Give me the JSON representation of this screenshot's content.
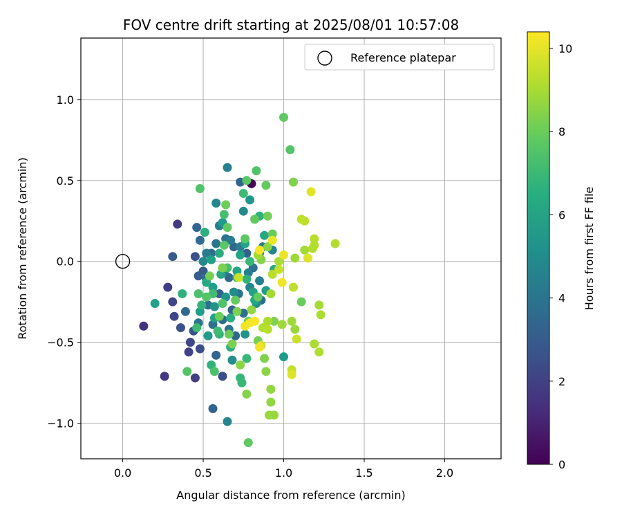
{
  "chart_data": {
    "type": "scatter",
    "title": "FOV centre drift starting at 2025/08/01 10:57:08",
    "xlabel": "Angular distance from reference (arcmin)",
    "ylabel": "Rotation from reference (arcmin)",
    "xlim": [
      -0.26,
      2.35
    ],
    "ylim": [
      -1.22,
      1.38
    ],
    "x_ticks": [
      0.0,
      0.5,
      1.0,
      1.5,
      2.0
    ],
    "x_tick_labels": [
      "0.0",
      "0.5",
      "1.0",
      "1.5",
      "2.0"
    ],
    "y_ticks": [
      -1.0,
      -0.5,
      0.0,
      0.5,
      1.0
    ],
    "y_tick_labels": [
      "−1.0",
      "−0.5",
      "0.0",
      "0.5",
      "1.0"
    ],
    "grid": true,
    "colormap": "viridis",
    "colorbar": {
      "label": "Hours from first FF file",
      "range": [
        0,
        10.4
      ],
      "ticks": [
        0,
        2,
        4,
        6,
        8,
        10
      ],
      "tick_labels": [
        "0",
        "2",
        "4",
        "6",
        "8",
        "10"
      ]
    },
    "legend": {
      "position": "upper right",
      "entries": [
        {
          "label": "Reference platepar",
          "marker": "open-circle"
        }
      ]
    },
    "reference_point": {
      "x": 0.0,
      "y": 0.0
    },
    "points": [
      {
        "x": 0.8,
        "y": 0.48,
        "h": 0.1
      },
      {
        "x": 0.13,
        "y": -0.4,
        "h": 1.5
      },
      {
        "x": 0.26,
        "y": -0.71,
        "h": 1.7
      },
      {
        "x": 0.28,
        "y": -0.16,
        "h": 1.9
      },
      {
        "x": 0.34,
        "y": 0.23,
        "h": 1.8
      },
      {
        "x": 0.45,
        "y": -0.72,
        "h": 2.0
      },
      {
        "x": 0.41,
        "y": -0.56,
        "h": 2.1
      },
      {
        "x": 0.31,
        "y": -0.25,
        "h": 2.2
      },
      {
        "x": 0.42,
        "y": -0.5,
        "h": 2.2
      },
      {
        "x": 0.48,
        "y": -0.54,
        "h": 2.4
      },
      {
        "x": 0.62,
        "y": -0.71,
        "h": 2.5
      },
      {
        "x": 0.36,
        "y": -0.41,
        "h": 2.6
      },
      {
        "x": 0.32,
        "y": -0.34,
        "h": 2.2
      },
      {
        "x": 0.44,
        "y": -0.43,
        "h": 2.7
      },
      {
        "x": 0.45,
        "y": 0.03,
        "h": 2.6
      },
      {
        "x": 0.31,
        "y": 0.03,
        "h": 3.0
      },
      {
        "x": 0.5,
        "y": -0.06,
        "h": 3.0
      },
      {
        "x": 0.47,
        "y": -0.09,
        "h": 3.1
      },
      {
        "x": 0.56,
        "y": -0.91,
        "h": 3.3
      },
      {
        "x": 0.73,
        "y": 0.49,
        "h": 3.4
      },
      {
        "x": 0.39,
        "y": -0.31,
        "h": 3.5
      },
      {
        "x": 0.52,
        "y": -0.11,
        "h": 3.6
      },
      {
        "x": 0.6,
        "y": -0.2,
        "h": 3.2
      },
      {
        "x": 0.46,
        "y": 0.21,
        "h": 3.4
      },
      {
        "x": 0.53,
        "y": -0.27,
        "h": 3.8
      },
      {
        "x": 0.64,
        "y": 0.14,
        "h": 3.9
      },
      {
        "x": 0.69,
        "y": 0.09,
        "h": 3.3
      },
      {
        "x": 0.55,
        "y": 0.05,
        "h": 3.7
      },
      {
        "x": 0.62,
        "y": -0.36,
        "h": 3.6
      },
      {
        "x": 0.7,
        "y": -0.46,
        "h": 3.5
      },
      {
        "x": 0.75,
        "y": -0.32,
        "h": 3.8
      },
      {
        "x": 0.66,
        "y": -0.42,
        "h": 3.9
      },
      {
        "x": 0.77,
        "y": 0.05,
        "h": 3.2
      },
      {
        "x": 0.58,
        "y": -0.58,
        "h": 3.4
      },
      {
        "x": 0.86,
        "y": -0.24,
        "h": 3.7
      },
      {
        "x": 0.66,
        "y": -0.1,
        "h": 3.5
      },
      {
        "x": 0.72,
        "y": -0.2,
        "h": 4.0
      },
      {
        "x": 0.58,
        "y": 0.11,
        "h": 4.0
      },
      {
        "x": 0.81,
        "y": -0.04,
        "h": 3.8
      },
      {
        "x": 0.48,
        "y": 0.13,
        "h": 3.6
      },
      {
        "x": 0.56,
        "y": -0.39,
        "h": 3.9
      },
      {
        "x": 0.68,
        "y": -0.3,
        "h": 3.4
      },
      {
        "x": 0.63,
        "y": -0.07,
        "h": 4.2
      },
      {
        "x": 0.47,
        "y": -0.38,
        "h": 4.1
      },
      {
        "x": 0.52,
        "y": 0.05,
        "h": 4.3
      },
      {
        "x": 0.87,
        "y": 0.09,
        "h": 4.2
      },
      {
        "x": 0.73,
        "y": 0.09,
        "h": 4.4
      },
      {
        "x": 0.65,
        "y": 0.58,
        "h": 4.6
      },
      {
        "x": 0.58,
        "y": 0.36,
        "h": 4.8
      },
      {
        "x": 0.85,
        "y": -0.12,
        "h": 4.6
      },
      {
        "x": 0.65,
        "y": -0.99,
        "h": 4.8
      },
      {
        "x": 0.79,
        "y": -0.16,
        "h": 4.7
      },
      {
        "x": 0.6,
        "y": 0.22,
        "h": 4.5
      },
      {
        "x": 0.75,
        "y": 0.31,
        "h": 5.0
      },
      {
        "x": 0.69,
        "y": -0.19,
        "h": 5.0
      },
      {
        "x": 0.68,
        "y": -0.61,
        "h": 5.1
      },
      {
        "x": 0.83,
        "y": -0.26,
        "h": 5.2
      },
      {
        "x": 0.57,
        "y": -0.28,
        "h": 5.3
      },
      {
        "x": 0.5,
        "y": 0.0,
        "h": 4.9
      },
      {
        "x": 0.93,
        "y": 0.07,
        "h": 4.7
      },
      {
        "x": 0.67,
        "y": 0.13,
        "h": 4.4
      },
      {
        "x": 0.78,
        "y": -0.07,
        "h": 4.5
      },
      {
        "x": 0.85,
        "y": 0.05,
        "h": 5.0
      },
      {
        "x": 1.0,
        "y": -0.59,
        "h": 5.7
      },
      {
        "x": 0.48,
        "y": -0.31,
        "h": 5.8
      },
      {
        "x": 0.2,
        "y": -0.26,
        "h": 5.9
      },
      {
        "x": 0.79,
        "y": 0.38,
        "h": 5.5
      },
      {
        "x": 0.62,
        "y": 0.24,
        "h": 5.6
      },
      {
        "x": 0.56,
        "y": -0.16,
        "h": 5.8
      },
      {
        "x": 0.76,
        "y": -0.45,
        "h": 5.4
      },
      {
        "x": 0.53,
        "y": -0.46,
        "h": 5.6
      },
      {
        "x": 0.81,
        "y": -0.19,
        "h": 6.0
      },
      {
        "x": 0.88,
        "y": 0.16,
        "h": 6.2
      },
      {
        "x": 0.64,
        "y": -0.22,
        "h": 5.4
      },
      {
        "x": 0.71,
        "y": -0.06,
        "h": 6.1
      },
      {
        "x": 0.55,
        "y": 0.01,
        "h": 5.9
      },
      {
        "x": 0.89,
        "y": -0.18,
        "h": 5.8
      },
      {
        "x": 0.76,
        "y": 0.11,
        "h": 6.1
      },
      {
        "x": 0.94,
        "y": -0.05,
        "h": 6.3
      },
      {
        "x": 0.82,
        "y": -0.24,
        "h": 6.2
      },
      {
        "x": 0.73,
        "y": 0.04,
        "h": 6.0
      },
      {
        "x": 0.61,
        "y": -0.08,
        "h": 6.3
      },
      {
        "x": 0.67,
        "y": -0.35,
        "h": 6.4
      },
      {
        "x": 0.52,
        "y": -0.13,
        "h": 6.2
      },
      {
        "x": 0.57,
        "y": -0.35,
        "h": 6.0
      },
      {
        "x": 0.51,
        "y": 0.18,
        "h": 6.5
      },
      {
        "x": 0.37,
        "y": -0.2,
        "h": 6.6
      },
      {
        "x": 0.6,
        "y": 0.05,
        "h": 6.4
      },
      {
        "x": 0.85,
        "y": 0.28,
        "h": 6.6
      },
      {
        "x": 0.55,
        "y": -0.64,
        "h": 6.7
      },
      {
        "x": 0.67,
        "y": -0.53,
        "h": 6.5
      },
      {
        "x": 0.77,
        "y": -0.11,
        "h": 6.7
      },
      {
        "x": 0.6,
        "y": -0.45,
        "h": 6.8
      },
      {
        "x": 0.49,
        "y": -0.27,
        "h": 6.8
      },
      {
        "x": 0.73,
        "y": -0.72,
        "h": 6.9
      },
      {
        "x": 0.74,
        "y": -0.75,
        "h": 7.0
      },
      {
        "x": 0.75,
        "y": 0.42,
        "h": 7.1
      },
      {
        "x": 0.71,
        "y": -0.1,
        "h": 6.9
      },
      {
        "x": 0.79,
        "y": 0.0,
        "h": 7.0
      },
      {
        "x": 0.77,
        "y": -0.6,
        "h": 7.0
      },
      {
        "x": 0.46,
        "y": -0.41,
        "h": 7.1
      },
      {
        "x": 0.59,
        "y": -0.43,
        "h": 7.2
      },
      {
        "x": 0.56,
        "y": -0.2,
        "h": 7.2
      },
      {
        "x": 0.65,
        "y": -0.04,
        "h": 7.3
      },
      {
        "x": 0.63,
        "y": 0.29,
        "h": 7.3
      },
      {
        "x": 0.48,
        "y": 0.45,
        "h": 7.5
      },
      {
        "x": 0.4,
        "y": -0.68,
        "h": 7.6
      },
      {
        "x": 0.57,
        "y": -0.68,
        "h": 7.4
      },
      {
        "x": 0.83,
        "y": 0.56,
        "h": 7.5
      },
      {
        "x": 0.77,
        "y": 0.5,
        "h": 7.7
      },
      {
        "x": 1.0,
        "y": 0.89,
        "h": 7.8
      },
      {
        "x": 1.04,
        "y": 0.69,
        "h": 7.6
      },
      {
        "x": 0.76,
        "y": 0.14,
        "h": 7.7
      },
      {
        "x": 0.65,
        "y": 0.21,
        "h": 7.8
      },
      {
        "x": 0.89,
        "y": 0.47,
        "h": 7.9
      },
      {
        "x": 0.63,
        "y": 0.1,
        "h": 7.7
      },
      {
        "x": 0.7,
        "y": -0.24,
        "h": 7.9
      },
      {
        "x": 0.82,
        "y": 0.26,
        "h": 7.8
      },
      {
        "x": 0.78,
        "y": -1.12,
        "h": 7.8
      },
      {
        "x": 0.52,
        "y": -0.22,
        "h": 7.6
      },
      {
        "x": 0.47,
        "y": -0.2,
        "h": 7.4
      },
      {
        "x": 0.62,
        "y": -0.26,
        "h": 7.5
      },
      {
        "x": 0.84,
        "y": -0.22,
        "h": 7.9
      },
      {
        "x": 0.93,
        "y": 0.17,
        "h": 8.0
      },
      {
        "x": 1.11,
        "y": -0.25,
        "h": 8.0
      },
      {
        "x": 0.64,
        "y": 0.35,
        "h": 8.1
      },
      {
        "x": 0.78,
        "y": -0.37,
        "h": 8.1
      },
      {
        "x": 0.54,
        "y": -0.09,
        "h": 8.2
      },
      {
        "x": 0.84,
        "y": -0.49,
        "h": 8.2
      },
      {
        "x": 0.71,
        "y": -0.31,
        "h": 8.3
      },
      {
        "x": 0.62,
        "y": -0.04,
        "h": 8.3
      },
      {
        "x": 0.88,
        "y": -0.6,
        "h": 8.4
      },
      {
        "x": 0.94,
        "y": -0.37,
        "h": 8.4
      },
      {
        "x": 0.66,
        "y": -0.45,
        "h": 8.0
      },
      {
        "x": 0.6,
        "y": -0.34,
        "h": 8.1
      },
      {
        "x": 0.68,
        "y": -0.51,
        "h": 8.3
      },
      {
        "x": 0.77,
        "y": -0.82,
        "h": 8.5
      },
      {
        "x": 0.73,
        "y": -0.64,
        "h": 8.6
      },
      {
        "x": 0.89,
        "y": -0.68,
        "h": 8.6
      },
      {
        "x": 0.92,
        "y": -0.79,
        "h": 8.7
      },
      {
        "x": 0.92,
        "y": -0.87,
        "h": 8.7
      },
      {
        "x": 0.91,
        "y": -0.95,
        "h": 8.8
      },
      {
        "x": 0.94,
        "y": -0.95,
        "h": 8.8
      },
      {
        "x": 0.9,
        "y": 0.28,
        "h": 8.2
      },
      {
        "x": 0.86,
        "y": 0.01,
        "h": 8.5
      },
      {
        "x": 0.9,
        "y": 0.09,
        "h": 8.6
      },
      {
        "x": 1.06,
        "y": 0.49,
        "h": 8.4
      },
      {
        "x": 0.8,
        "y": -0.3,
        "h": 8.7
      },
      {
        "x": 0.99,
        "y": -0.39,
        "h": 8.9
      },
      {
        "x": 1.05,
        "y": -0.37,
        "h": 8.9
      },
      {
        "x": 1.13,
        "y": 0.07,
        "h": 9.0
      },
      {
        "x": 1.07,
        "y": -0.42,
        "h": 8.8
      },
      {
        "x": 1.07,
        "y": 0.02,
        "h": 8.9
      },
      {
        "x": 0.84,
        "y": 0.04,
        "h": 9.0
      },
      {
        "x": 0.9,
        "y": -0.37,
        "h": 9.1
      },
      {
        "x": 1.19,
        "y": -0.51,
        "h": 9.1
      },
      {
        "x": 1.22,
        "y": -0.27,
        "h": 9.0
      },
      {
        "x": 1.23,
        "y": -0.33,
        "h": 9.1
      },
      {
        "x": 1.22,
        "y": -0.56,
        "h": 9.2
      },
      {
        "x": 1.32,
        "y": 0.11,
        "h": 9.2
      },
      {
        "x": 1.19,
        "y": 0.14,
        "h": 9.3
      },
      {
        "x": 1.19,
        "y": 0.1,
        "h": 9.3
      },
      {
        "x": 1.18,
        "y": 0.08,
        "h": 9.2
      },
      {
        "x": 1.11,
        "y": 0.26,
        "h": 9.4
      },
      {
        "x": 1.13,
        "y": 0.25,
        "h": 9.4
      },
      {
        "x": 0.97,
        "y": 0.0,
        "h": 9.1
      },
      {
        "x": 0.93,
        "y": -0.08,
        "h": 9.3
      },
      {
        "x": 0.92,
        "y": -0.2,
        "h": 9.0
      },
      {
        "x": 0.87,
        "y": -0.41,
        "h": 9.2
      },
      {
        "x": 1.05,
        "y": -0.67,
        "h": 9.5
      },
      {
        "x": 1.06,
        "y": -0.16,
        "h": 9.4
      },
      {
        "x": 0.9,
        "y": -0.42,
        "h": 9.3
      },
      {
        "x": 0.97,
        "y": -0.05,
        "h": 9.5
      },
      {
        "x": 1.08,
        "y": -0.48,
        "h": 9.6
      },
      {
        "x": 0.72,
        "y": -0.1,
        "h": 9.6
      },
      {
        "x": 0.86,
        "y": -0.52,
        "h": 9.7
      },
      {
        "x": 1.05,
        "y": -0.7,
        "h": 9.9
      },
      {
        "x": 1.15,
        "y": 0.02,
        "h": 9.9
      },
      {
        "x": 1.17,
        "y": 0.43,
        "h": 10.0
      },
      {
        "x": 1.0,
        "y": 0.04,
        "h": 10.1
      },
      {
        "x": 0.99,
        "y": -0.13,
        "h": 10.2
      },
      {
        "x": 0.85,
        "y": -0.53,
        "h": 10.2
      },
      {
        "x": 0.85,
        "y": 0.07,
        "h": 10.3
      },
      {
        "x": 0.79,
        "y": -0.38,
        "h": 10.3
      },
      {
        "x": 0.82,
        "y": -0.37,
        "h": 10.3
      },
      {
        "x": 0.76,
        "y": -0.4,
        "h": 10.2
      },
      {
        "x": 0.93,
        "y": 0.13,
        "h": 10.1
      }
    ]
  }
}
